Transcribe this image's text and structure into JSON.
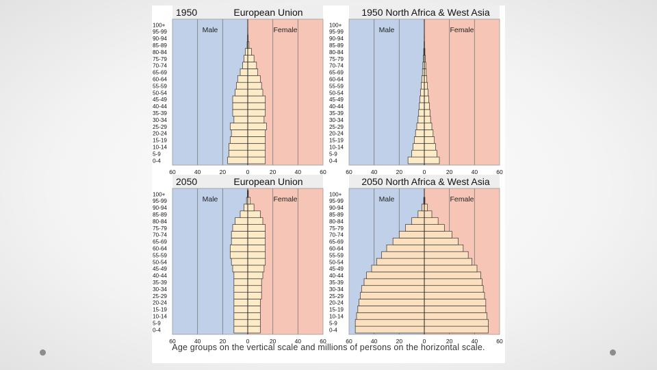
{
  "colors": {
    "male_background": "#bfd0e8",
    "female_background": "#f6c5b6",
    "bar_fill": "#fdebc8",
    "bar_fill_2050_nawa": "#fbe0c0",
    "bar_stroke": "#333333",
    "title_strip": "#eeeeee"
  },
  "caption": "Age groups on the vertical scale and millions of persons on the horizontal scale.",
  "chart_data": [
    {
      "type": "bar",
      "orientation": "horizontal",
      "year": "1950",
      "region": "European Union",
      "left_label": "Male",
      "right_label": "Female",
      "xlim": [
        -60,
        60
      ],
      "x_ticks": [
        "60",
        "40",
        "20",
        "0",
        "20",
        "40",
        "60"
      ],
      "categories": [
        "0-4",
        "5-9",
        "10-14",
        "15-19",
        "20-24",
        "25-29",
        "30-34",
        "35-39",
        "40-44",
        "45-49",
        "50-54",
        "55-59",
        "60-64",
        "65-69",
        "70-74",
        "75-79",
        "80-84",
        "85-89",
        "90-94",
        "95-99",
        "100+"
      ],
      "series": [
        {
          "name": "Male",
          "values": [
            16,
            15,
            15,
            14,
            13,
            14,
            11,
            12,
            12,
            12,
            10,
            9,
            8,
            6,
            4,
            3,
            2,
            0.5,
            0.2,
            0.1,
            0
          ]
        },
        {
          "name": "Female",
          "values": [
            14,
            14,
            14,
            14,
            14,
            15,
            13,
            14,
            14,
            14,
            12,
            11,
            10,
            8,
            7,
            5,
            3,
            1,
            0.3,
            0.1,
            0
          ]
        }
      ]
    },
    {
      "type": "bar",
      "orientation": "horizontal",
      "year": "1950",
      "region": "North Africa & West Asia",
      "left_label": "Male",
      "right_label": "Female",
      "xlim": [
        -60,
        60
      ],
      "x_ticks": [
        "60",
        "40",
        "20",
        "0",
        "20",
        "40",
        "60"
      ],
      "categories": [
        "0-4",
        "5-9",
        "10-14",
        "15-19",
        "20-24",
        "25-29",
        "30-34",
        "35-39",
        "40-44",
        "45-49",
        "50-54",
        "55-59",
        "60-64",
        "65-69",
        "70-74",
        "75-79",
        "80-84",
        "85-89",
        "90-94",
        "95-99",
        "100+"
      ],
      "series": [
        {
          "name": "Male",
          "values": [
            13,
            10,
            9,
            8,
            7,
            6,
            5,
            4.5,
            4,
            3.5,
            3,
            2.5,
            2,
            1.5,
            1.2,
            0.8,
            0.5,
            0.2,
            0.1,
            0,
            0
          ]
        },
        {
          "name": "Female",
          "values": [
            12,
            10,
            9,
            8,
            7,
            6,
            5,
            4.5,
            4,
            3.5,
            3,
            2.5,
            2,
            1.5,
            1.2,
            0.8,
            0.5,
            0.2,
            0.1,
            0,
            0
          ]
        }
      ]
    },
    {
      "type": "bar",
      "orientation": "horizontal",
      "year": "2050",
      "region": "European Union",
      "left_label": "Male",
      "right_label": "Female",
      "xlim": [
        -60,
        60
      ],
      "x_ticks": [
        "60",
        "40",
        "20",
        "0",
        "20",
        "40",
        "60"
      ],
      "categories": [
        "0-4",
        "5-9",
        "10-14",
        "15-19",
        "20-24",
        "25-29",
        "30-34",
        "35-39",
        "40-44",
        "45-49",
        "50-54",
        "55-59",
        "60-64",
        "65-69",
        "70-74",
        "75-79",
        "80-84",
        "85-89",
        "90-94",
        "95-99",
        "100+"
      ],
      "series": [
        {
          "name": "Male",
          "values": [
            11,
            11,
            11,
            11,
            11,
            11,
            11,
            11,
            11,
            12,
            13,
            14,
            14,
            13,
            13,
            12,
            10,
            6,
            3,
            1,
            0.3
          ]
        },
        {
          "name": "Female",
          "values": [
            10,
            10,
            10,
            10,
            10,
            11,
            11,
            11,
            12,
            13,
            14,
            14,
            14,
            14,
            14,
            14,
            12,
            10,
            5,
            2,
            0.5
          ]
        }
      ]
    },
    {
      "type": "bar",
      "orientation": "horizontal",
      "year": "2050",
      "region": "North Africa & West Asia",
      "left_label": "Male",
      "right_label": "Female",
      "xlim": [
        -60,
        60
      ],
      "x_ticks": [
        "60",
        "40",
        "20",
        "0",
        "20",
        "40",
        "60"
      ],
      "categories": [
        "0-4",
        "5-9",
        "10-14",
        "15-19",
        "20-24",
        "25-29",
        "30-34",
        "35-39",
        "40-44",
        "45-49",
        "50-54",
        "55-59",
        "60-64",
        "65-69",
        "70-74",
        "75-79",
        "80-84",
        "85-89",
        "90-94",
        "95-99",
        "100+"
      ],
      "series": [
        {
          "name": "Male",
          "values": [
            55,
            55,
            54,
            53,
            52,
            51,
            50,
            48,
            46,
            42,
            38,
            34,
            30,
            25,
            20,
            15,
            10,
            5,
            2,
            0.5,
            0
          ]
        },
        {
          "name": "Female",
          "values": [
            51,
            51,
            50,
            49,
            49,
            48,
            47,
            46,
            45,
            42,
            38,
            35,
            31,
            27,
            22,
            16,
            11,
            6,
            2.5,
            0.5,
            0
          ]
        }
      ]
    }
  ]
}
